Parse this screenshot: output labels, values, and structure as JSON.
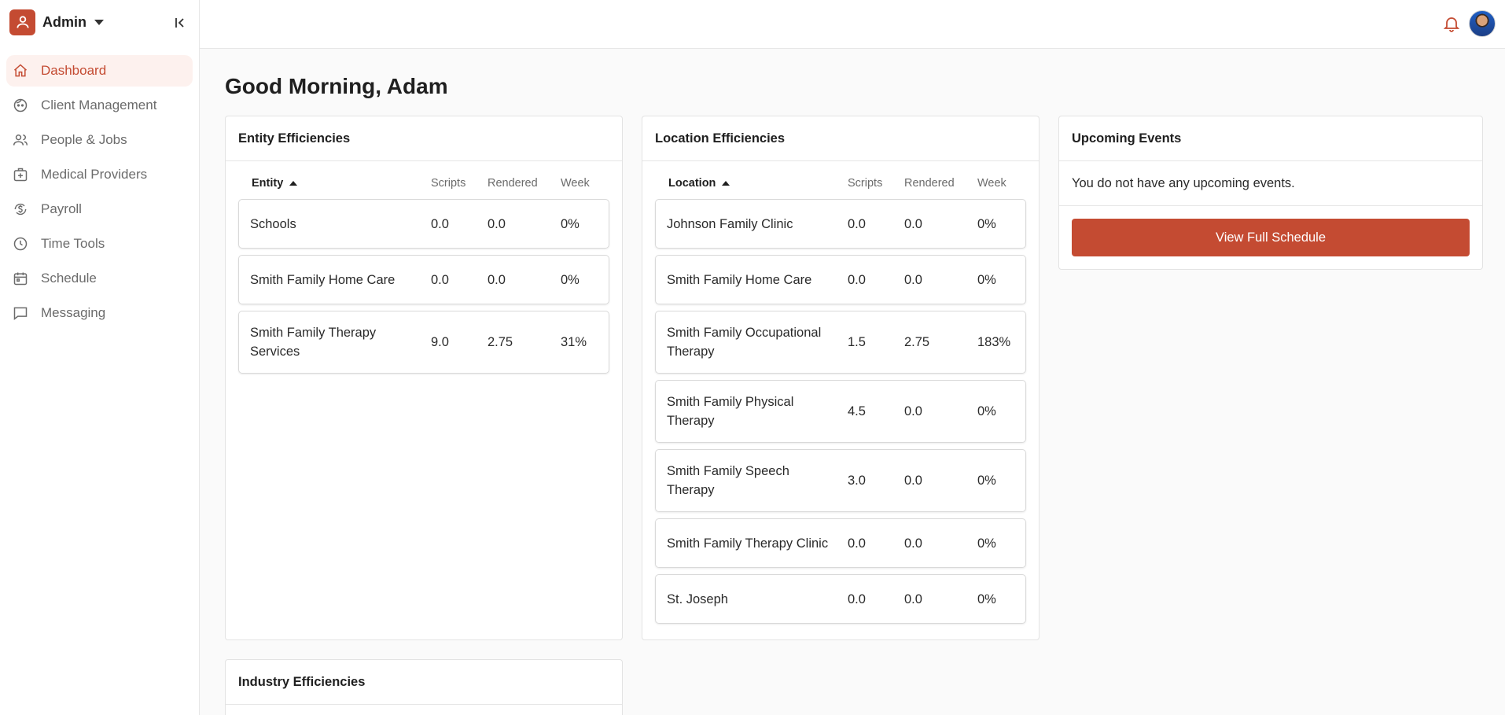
{
  "org": {
    "name": "Admin"
  },
  "sidebar": {
    "items": [
      {
        "label": "Dashboard",
        "icon": "home-icon",
        "active": true
      },
      {
        "label": "Client Management",
        "icon": "face-icon"
      },
      {
        "label": "People & Jobs",
        "icon": "people-icon"
      },
      {
        "label": "Medical Providers",
        "icon": "medical-kit-icon"
      },
      {
        "label": "Payroll",
        "icon": "payroll-icon"
      },
      {
        "label": "Time Tools",
        "icon": "clock-icon"
      },
      {
        "label": "Schedule",
        "icon": "calendar-icon"
      },
      {
        "label": "Messaging",
        "icon": "message-icon"
      }
    ]
  },
  "colors": {
    "accent": "#c44b32",
    "accent_bg": "#fdf1ee"
  },
  "greeting": "Good Morning, Adam",
  "entity": {
    "title": "Entity Efficiencies",
    "headers": {
      "name": "Entity",
      "scripts": "Scripts",
      "rendered": "Rendered",
      "week": "Week"
    },
    "rows": [
      {
        "name": "Schools",
        "scripts": "0.0",
        "rendered": "0.0",
        "week": "0%"
      },
      {
        "name": "Smith Family Home Care",
        "scripts": "0.0",
        "rendered": "0.0",
        "week": "0%"
      },
      {
        "name": "Smith Family Therapy Services",
        "scripts": "9.0",
        "rendered": "2.75",
        "week": "31%"
      }
    ]
  },
  "location": {
    "title": "Location Efficiencies",
    "headers": {
      "name": "Location",
      "scripts": "Scripts",
      "rendered": "Rendered",
      "week": "Week"
    },
    "rows": [
      {
        "name": "Johnson Family Clinic",
        "scripts": "0.0",
        "rendered": "0.0",
        "week": "0%"
      },
      {
        "name": "Smith Family Home Care",
        "scripts": "0.0",
        "rendered": "0.0",
        "week": "0%"
      },
      {
        "name": "Smith Family Occupational Therapy",
        "scripts": "1.5",
        "rendered": "2.75",
        "week": "183%"
      },
      {
        "name": "Smith Family Physical Therapy",
        "scripts": "4.5",
        "rendered": "0.0",
        "week": "0%"
      },
      {
        "name": "Smith Family Speech Therapy",
        "scripts": "3.0",
        "rendered": "0.0",
        "week": "0%"
      },
      {
        "name": "Smith Family Therapy Clinic",
        "scripts": "0.0",
        "rendered": "0.0",
        "week": "0%"
      },
      {
        "name": "St. Joseph",
        "scripts": "0.0",
        "rendered": "0.0",
        "week": "0%"
      }
    ]
  },
  "events": {
    "title": "Upcoming Events",
    "empty_message": "You do not have any upcoming events.",
    "button_label": "View Full Schedule"
  },
  "industry": {
    "title": "Industry Efficiencies"
  }
}
